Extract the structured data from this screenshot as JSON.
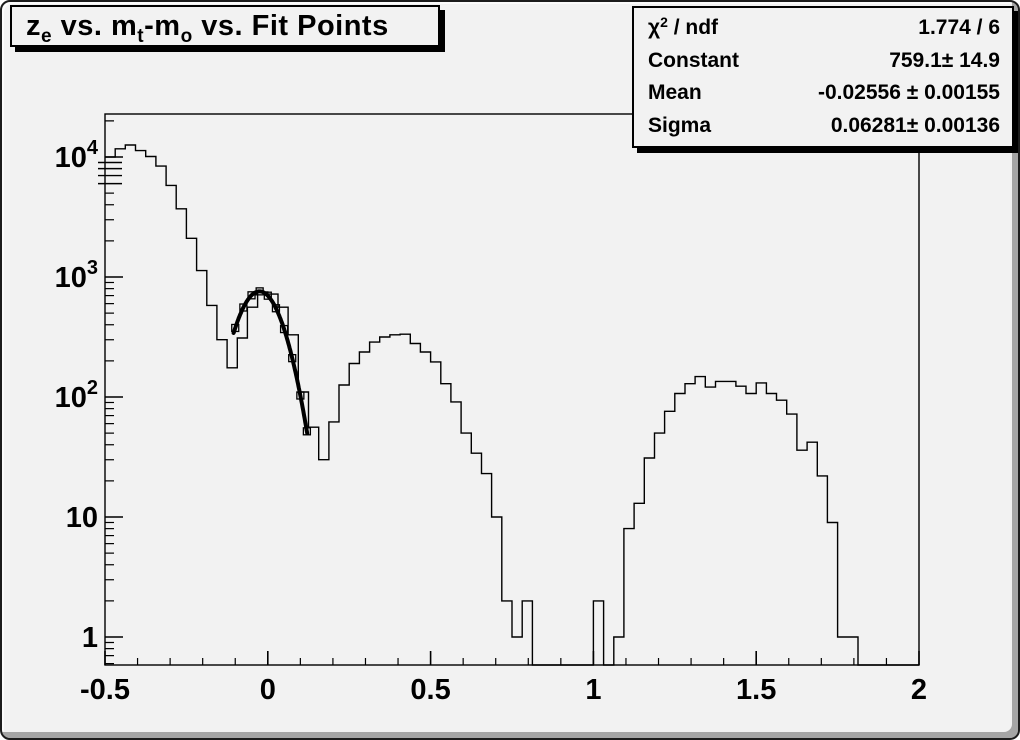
{
  "window": {
    "background_color": "#f2f2f2",
    "bevel_color": "#a5a5a5",
    "line_color": "#000000"
  },
  "title_box": {
    "segments": [
      {
        "text": "z"
      },
      {
        "text": "e",
        "sub": true
      },
      {
        "text": " vs. m"
      },
      {
        "text": "t",
        "sub": true
      },
      {
        "text": "-m"
      },
      {
        "text": "o",
        "sub": true
      },
      {
        "text": " vs. Fit Points"
      }
    ]
  },
  "stats_box": {
    "rows": [
      {
        "label_runs": [
          {
            "t": "χ"
          },
          {
            "t": "2",
            "sup": true
          },
          {
            "t": " / ndf"
          }
        ],
        "value": "1.774 / 6"
      },
      {
        "label_runs": [
          {
            "t": "Constant"
          }
        ],
        "value": "759.1± 14.9"
      },
      {
        "label_runs": [
          {
            "t": "Mean"
          }
        ],
        "value": "-0.02556 ± 0.00155"
      },
      {
        "label_runs": [
          {
            "t": "Sigma"
          }
        ],
        "value": "0.06281± 0.00136"
      }
    ]
  },
  "chart_data": {
    "type": "bar",
    "subtype": "step-histogram",
    "title": "z_e vs. m_t-m_o vs. Fit Points",
    "xlabel": "",
    "ylabel": "",
    "x_axis": {
      "min": -0.5,
      "max": 2.0,
      "major_ticks": [
        -0.5,
        0,
        0.5,
        1,
        1.5,
        2
      ],
      "major_labels": [
        "-0.5",
        "0",
        "0.5",
        "1",
        "1.5",
        "2"
      ],
      "minor_step": 0.1
    },
    "y_axis": {
      "scale": "log",
      "min": 0.584,
      "max": 22800,
      "major_ticks": [
        1,
        10,
        100,
        1000,
        10000
      ],
      "major_labels": [
        {
          "base": "1",
          "exp": ""
        },
        {
          "base": "10",
          "exp": ""
        },
        {
          "base": "10",
          "exp": "2"
        },
        {
          "base": "10",
          "exp": "3"
        },
        {
          "base": "10",
          "exp": "4"
        }
      ]
    },
    "grid": false,
    "bins": {
      "start": -0.5,
      "width": 0.03125,
      "counts": [
        10000,
        11700,
        12600,
        11300,
        10100,
        8400,
        5800,
        3700,
        2100,
        1130,
        580,
        300,
        175,
        310,
        560,
        750,
        720,
        560,
        330,
        110,
        56,
        30,
        62,
        126,
        190,
        237,
        287,
        316,
        330,
        334,
        279,
        237,
        196,
        129,
        91,
        50,
        34,
        23,
        10,
        2,
        1,
        2,
        0,
        0,
        0,
        0,
        0,
        0,
        2,
        0,
        1,
        8,
        13,
        31,
        50,
        76,
        107,
        129,
        148,
        121,
        135,
        135,
        123,
        107,
        131,
        107,
        94,
        72,
        36,
        42,
        22,
        9,
        1,
        1,
        0,
        0,
        0,
        0,
        0,
        0
      ]
    },
    "fit": {
      "type": "gaussian",
      "chi2": 1.774,
      "ndf": 6,
      "constant": 759.1,
      "constant_err": 14.9,
      "mean": -0.02556,
      "mean_err": 0.00155,
      "sigma": 0.06281,
      "sigma_err": 0.00136,
      "draw_range": [
        -0.105,
        0.121
      ],
      "fit_point_marker": "open-square",
      "fit_points_x": [
        -0.1,
        -0.075,
        -0.05,
        -0.025,
        0.0,
        0.025,
        0.05,
        0.075,
        0.1,
        0.12
      ]
    }
  }
}
